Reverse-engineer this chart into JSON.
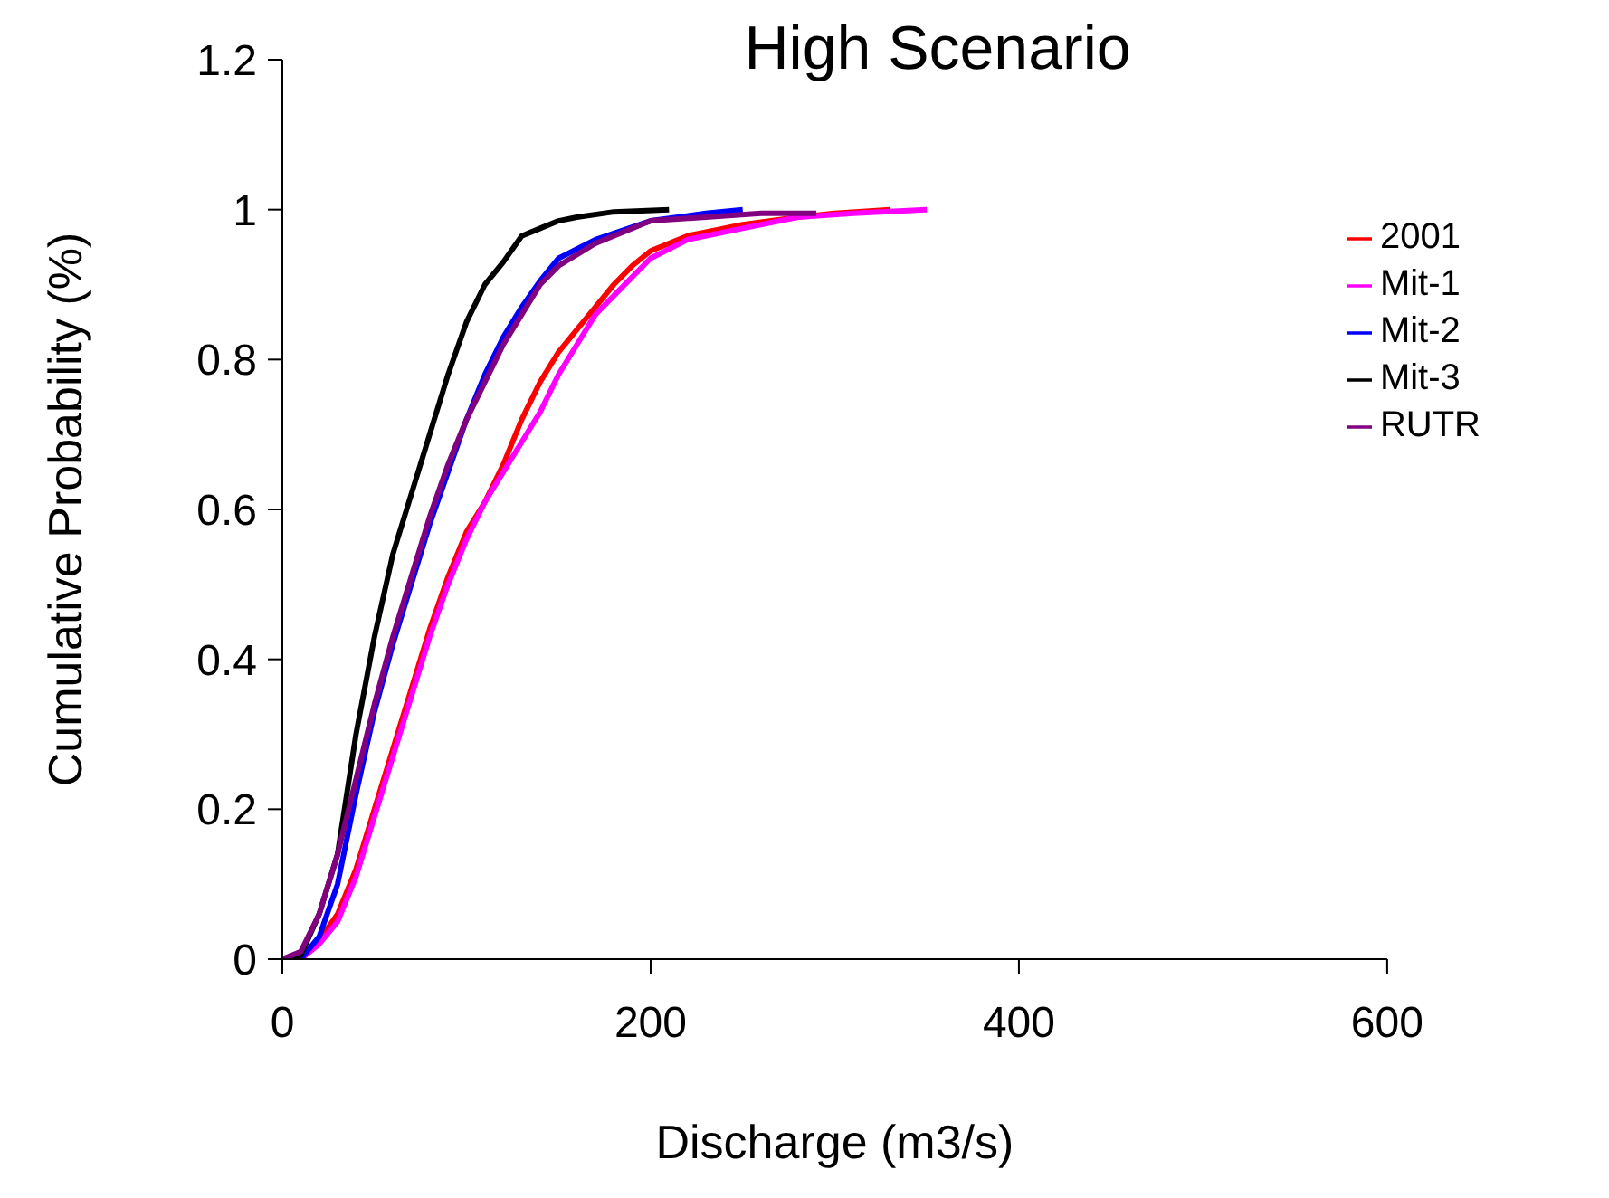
{
  "chart_data": {
    "type": "line",
    "title": "High Scenario",
    "xlabel": "Discharge (m3/s)",
    "ylabel": "Cumulative Probability (%)",
    "xlim": [
      0,
      600
    ],
    "xticks": [
      0,
      200,
      400,
      600
    ],
    "ylim": [
      0,
      1.2
    ],
    "yticks": [
      0,
      0.2,
      0.4,
      0.6,
      0.8,
      1,
      1.2
    ],
    "grid": false,
    "legend": "top right",
    "marker": "none",
    "line_style": "solid",
    "series": [
      {
        "name": "2001",
        "color": "#ff0000",
        "x": [
          10,
          20,
          30,
          40,
          50,
          60,
          70,
          80,
          90,
          100,
          110,
          120,
          130,
          140,
          150,
          160,
          170,
          180,
          190,
          200,
          220,
          250,
          280,
          300,
          330
        ],
        "values": [
          0,
          0.025,
          0.06,
          0.12,
          0.2,
          0.28,
          0.36,
          0.44,
          0.51,
          0.57,
          0.61,
          0.66,
          0.72,
          0.77,
          0.81,
          0.84,
          0.87,
          0.9,
          0.925,
          0.945,
          0.965,
          0.98,
          0.99,
          0.995,
          1
        ]
      },
      {
        "name": "Mit-1",
        "color": "#ff00ff",
        "x": [
          10,
          20,
          30,
          40,
          50,
          60,
          70,
          80,
          90,
          100,
          110,
          120,
          130,
          140,
          150,
          160,
          170,
          180,
          190,
          200,
          220,
          250,
          280,
          310,
          350
        ],
        "values": [
          0,
          0.02,
          0.05,
          0.11,
          0.19,
          0.27,
          0.35,
          0.43,
          0.5,
          0.56,
          0.61,
          0.65,
          0.69,
          0.73,
          0.78,
          0.82,
          0.86,
          0.885,
          0.91,
          0.935,
          0.96,
          0.975,
          0.99,
          0.995,
          1
        ]
      },
      {
        "name": "Mit-2",
        "color": "#0000ff",
        "x": [
          10,
          20,
          30,
          40,
          50,
          60,
          70,
          80,
          90,
          100,
          110,
          120,
          130,
          140,
          150,
          170,
          200,
          230,
          250
        ],
        "values": [
          0,
          0.03,
          0.1,
          0.22,
          0.33,
          0.42,
          0.5,
          0.58,
          0.65,
          0.72,
          0.78,
          0.83,
          0.87,
          0.905,
          0.935,
          0.96,
          0.985,
          0.995,
          1
        ]
      },
      {
        "name": "Mit-3",
        "color": "#000000",
        "x": [
          0,
          10,
          20,
          30,
          40,
          50,
          60,
          70,
          80,
          90,
          100,
          110,
          120,
          130,
          140,
          150,
          160,
          180,
          210
        ],
        "values": [
          0,
          0.005,
          0.06,
          0.14,
          0.3,
          0.43,
          0.54,
          0.62,
          0.7,
          0.78,
          0.85,
          0.9,
          0.93,
          0.965,
          0.975,
          0.985,
          0.99,
          0.997,
          1
        ]
      },
      {
        "name": "RUTR",
        "color": "#800080",
        "x": [
          0,
          10,
          20,
          30,
          40,
          50,
          60,
          70,
          80,
          90,
          100,
          110,
          120,
          130,
          140,
          150,
          170,
          200,
          230,
          260,
          290
        ],
        "values": [
          0,
          0.01,
          0.06,
          0.14,
          0.24,
          0.34,
          0.43,
          0.51,
          0.59,
          0.66,
          0.72,
          0.77,
          0.82,
          0.86,
          0.9,
          0.925,
          0.955,
          0.985,
          0.99,
          0.995,
          0.995
        ]
      }
    ]
  }
}
